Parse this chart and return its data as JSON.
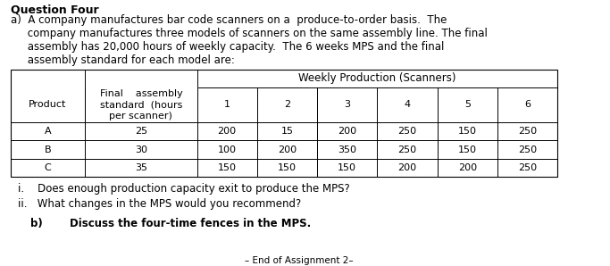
{
  "title": "Question Four",
  "table_header_top": "Weekly Production (Scanners)",
  "table_col_headers": [
    "Product",
    "Final    assembly\nstandard  (hours\nper scanner)",
    "1",
    "2",
    "3",
    "4",
    "5",
    "6"
  ],
  "table_rows": [
    [
      "A",
      "25",
      "200",
      "15",
      "200",
      "250",
      "150",
      "250"
    ],
    [
      "B",
      "30",
      "100",
      "200",
      "350",
      "250",
      "150",
      "250"
    ],
    [
      "C",
      "35",
      "150",
      "150",
      "150",
      "200",
      "200",
      "250"
    ]
  ],
  "sub_i": "i.    Does enough production capacity exit to produce the MPS?",
  "sub_ii": "ii.   What changes in the MPS would you recommend?",
  "para_b_label": "b)",
  "para_b_text": "Discuss the four-time fences in the MPS.",
  "footer": "– End of Assignment 2–",
  "bg_color": "#ffffff",
  "text_color": "#000000",
  "font_size": 8.5,
  "title_font_size": 9,
  "para_a_lines": [
    "a)  A company manufactures bar code scanners on a  produce-to-order basis.  The",
    "     company manufactures three models of scanners on the same assembly line. The final",
    "     assembly has 20,000 hours of weekly capacity.  The 6 weeks MPS and the final",
    "     assembly standard for each model are:"
  ]
}
